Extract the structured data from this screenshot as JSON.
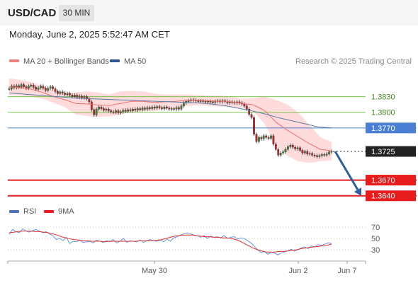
{
  "header": {
    "symbol": "USD/CAD",
    "timeframe": "30 MIN",
    "datetime": "Monday, June 2, 2025 5:52:47 AM CET"
  },
  "legend": {
    "ma20_label": "MA 20 + Bollinger Bands",
    "ma50_label": "MA 50",
    "credit": "Research © 2025 Trading Central",
    "rsi_label": "RSI",
    "ma9_label": "9MA"
  },
  "colors": {
    "resistance": "#7dc44a",
    "pivot": "#4a7fd4",
    "support": "#e81c1c",
    "bollinger": "#ffd5d5",
    "ma20": "#f07070",
    "ma50": "#5a7ea8",
    "arrow": "#2e5e9e",
    "rsi": "#5b8fe0",
    "ma9": "#e03030",
    "candle_up": "#3a8a3a",
    "candle_down": "#c42424"
  },
  "chart_data": [
    {
      "type": "candlestick",
      "title": "USD/CAD",
      "ylim": [
        1.3622,
        1.3885
      ],
      "x_ticks": [
        "May 30",
        "Jun 2",
        "Jun 7"
      ],
      "levels": [
        {
          "value": "1.3830",
          "kind": "resistance"
        },
        {
          "value": "1.3800",
          "kind": "resistance"
        },
        {
          "value": "1.3770",
          "kind": "pivot"
        },
        {
          "value": "1.3725",
          "kind": "last"
        },
        {
          "value": "1.3670",
          "kind": "support"
        },
        {
          "value": "1.3640",
          "kind": "support"
        }
      ],
      "close": [
        1.3845,
        1.385,
        1.3847,
        1.3851,
        1.3848,
        1.3853,
        1.3849,
        1.3846,
        1.385,
        1.3852,
        1.3848,
        1.3844,
        1.3847,
        1.385,
        1.3846,
        1.3842,
        1.3846,
        1.3849,
        1.3845,
        1.384,
        1.3836,
        1.3839,
        1.3837,
        1.3834,
        1.3836,
        1.3833,
        1.383,
        1.3833,
        1.3829,
        1.3831,
        1.3828,
        1.383,
        1.3826,
        1.382,
        1.3805,
        1.3795,
        1.3806,
        1.381,
        1.3807,
        1.3804,
        1.3806,
        1.3803,
        1.3801,
        1.38,
        1.3803,
        1.3799,
        1.3801,
        1.3804,
        1.3802,
        1.3805,
        1.3803,
        1.3806,
        1.3804,
        1.3807,
        1.3805,
        1.3808,
        1.3806,
        1.3809,
        1.3807,
        1.381,
        1.3808,
        1.3811,
        1.3809,
        1.3807,
        1.381,
        1.3808,
        1.3806,
        1.3807,
        1.3806,
        1.3809,
        1.3806,
        1.3812,
        1.3818,
        1.3821,
        1.3822,
        1.3824,
        1.3823,
        1.3822,
        1.3821,
        1.3822,
        1.3821,
        1.382,
        1.3821,
        1.382,
        1.3819,
        1.3821,
        1.3822,
        1.382,
        1.3822,
        1.3821,
        1.3818,
        1.382,
        1.3819,
        1.3818,
        1.382,
        1.3818,
        1.3816,
        1.3812,
        1.3806,
        1.3796,
        1.379,
        1.3758,
        1.3744,
        1.3752,
        1.3749,
        1.3755,
        1.3752,
        1.375,
        1.3755,
        1.3739,
        1.3729,
        1.3718,
        1.3722,
        1.3724,
        1.3729,
        1.3734,
        1.3737,
        1.3733,
        1.373,
        1.3732,
        1.3727,
        1.3722,
        1.3725,
        1.372,
        1.3721,
        1.3718,
        1.3717,
        1.3715,
        1.3717,
        1.3719,
        1.3718,
        1.372,
        1.3724,
        1.3725
      ],
      "bollinger": {
        "upper": [
          1.3865,
          1.3862,
          1.3858,
          1.385,
          1.3842,
          1.3838,
          1.3838,
          1.384,
          1.3838,
          1.3834,
          1.384,
          1.3841,
          1.384,
          1.3836,
          1.3834,
          1.3834,
          1.3834,
          1.3833,
          1.3832,
          1.3832,
          1.383,
          1.3826,
          1.3827,
          1.383,
          1.3824,
          1.3815,
          1.38,
          1.3776,
          1.3752,
          1.3743
        ],
        "lower": [
          1.3833,
          1.3832,
          1.383,
          1.3826,
          1.3818,
          1.381,
          1.3796,
          1.3793,
          1.3791,
          1.3792,
          1.3795,
          1.3801,
          1.3802,
          1.3802,
          1.3806,
          1.3808,
          1.3812,
          1.3814,
          1.3812,
          1.3811,
          1.381,
          1.3808,
          1.3801,
          1.3777,
          1.3738,
          1.3717,
          1.3706,
          1.3703,
          1.3706,
          1.3708
        ],
        "ma20": [
          1.3849,
          1.3847,
          1.3844,
          1.3838,
          1.383,
          1.3824,
          1.3817,
          1.3816,
          1.3814,
          1.3813,
          1.3817,
          1.3821,
          1.3821,
          1.3819,
          1.382,
          1.3821,
          1.3823,
          1.3823,
          1.3822,
          1.3821,
          1.382,
          1.3817,
          1.3814,
          1.3803,
          1.3781,
          1.3766,
          1.3753,
          1.374,
          1.3729,
          1.3726
        ]
      },
      "ma50": [
        1.3837,
        1.3835,
        1.3833,
        1.3831,
        1.3829,
        1.3827,
        1.3826,
        1.3825,
        1.3824,
        1.3823,
        1.3822,
        1.3821,
        1.382,
        1.3819,
        1.3818,
        1.3816,
        1.3813,
        1.3808,
        1.3803,
        1.3797,
        1.379,
        1.3784,
        1.3778,
        1.3772,
        1.377
      ],
      "forecast": [
        1.3725,
        1.364
      ]
    },
    {
      "type": "line",
      "series_names": [
        "RSI",
        "9MA"
      ],
      "ylim": [
        10,
        80
      ],
      "y_ticks": [
        "70",
        "50",
        "30"
      ],
      "rsi": [
        57,
        66,
        62,
        60,
        67,
        63,
        61,
        64,
        66,
        63,
        60,
        62,
        58,
        55,
        48,
        50,
        46,
        52,
        41,
        45,
        44,
        47,
        43,
        44,
        45,
        42,
        47,
        45,
        43,
        46,
        44,
        48,
        42,
        45,
        50,
        43,
        46,
        45,
        44,
        47,
        43,
        46,
        48,
        46,
        45,
        47,
        44,
        49,
        45,
        51,
        53,
        56,
        58,
        60,
        58,
        56,
        55,
        52,
        55,
        50,
        54,
        52,
        53,
        51,
        55,
        50,
        52,
        53,
        49,
        51,
        50,
        46,
        42,
        36,
        30,
        25,
        27,
        22,
        26,
        24,
        21,
        24,
        26,
        28,
        31,
        28,
        30,
        33,
        35,
        32,
        37,
        35,
        39,
        38,
        40,
        42,
        41
      ],
      "ma9": [
        60,
        61,
        62,
        63,
        63,
        63,
        62,
        62,
        61,
        60,
        58,
        56,
        53,
        51,
        49,
        48,
        47,
        46,
        46,
        45,
        45,
        45,
        44,
        45,
        45,
        45,
        45,
        45,
        45,
        45,
        46,
        46,
        46,
        46,
        47,
        48,
        50,
        52,
        54,
        55,
        56,
        56,
        56,
        55,
        54,
        53,
        53,
        52,
        52,
        51,
        51,
        50,
        48,
        45,
        41,
        37,
        33,
        30,
        28,
        26,
        26,
        26,
        27,
        27,
        28,
        29,
        30,
        32,
        33,
        34,
        35,
        36,
        37,
        38,
        40
      ]
    }
  ]
}
